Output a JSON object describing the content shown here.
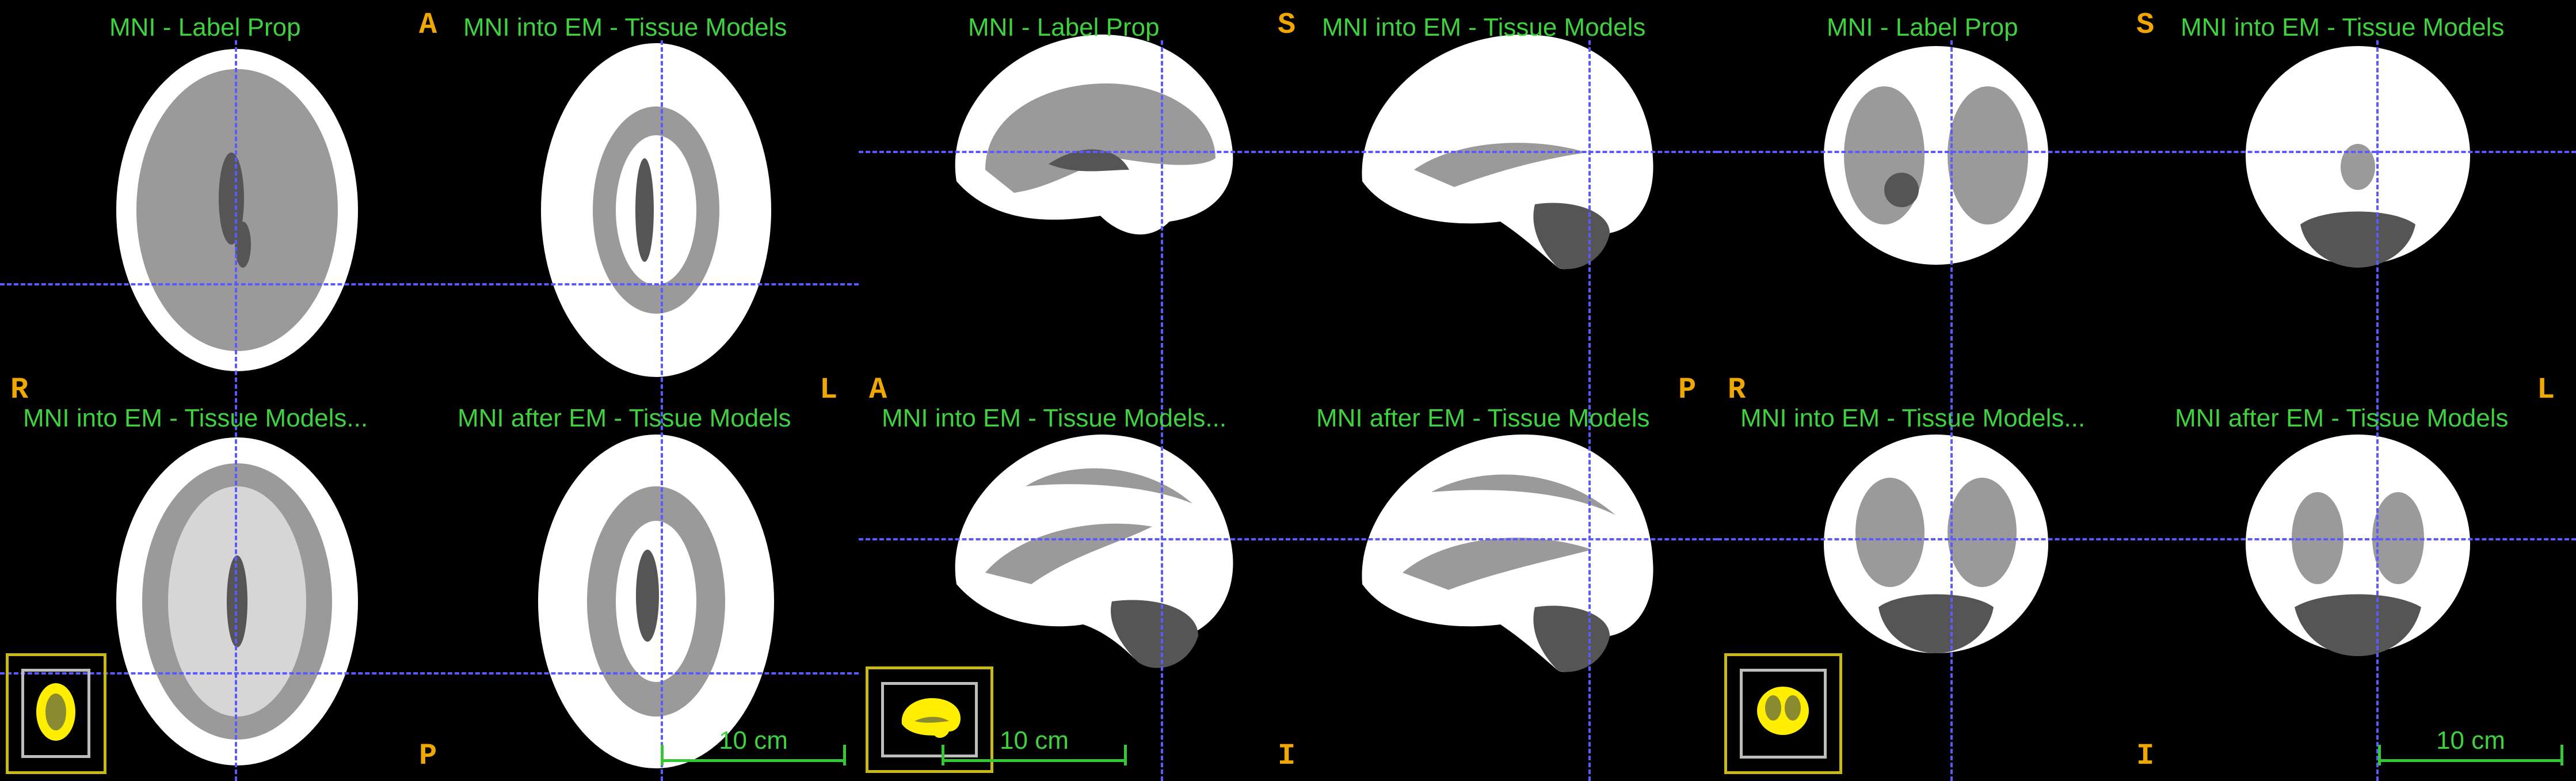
{
  "views": {
    "axial": {
      "titles": [
        "MNI - Label Prop",
        "MNI into EM - Tissue Models",
        "MNI into EM - Tissue Models...",
        "MNI after EM - Tissue Models"
      ],
      "orient": {
        "top": "A",
        "left": "R",
        "right": "L",
        "bottom": "P"
      },
      "scale": "10 cm"
    },
    "sagittal": {
      "titles": [
        "MNI - Label Prop",
        "MNI into EM - Tissue Models",
        "MNI into EM - Tissue Models...",
        "MNI after EM - Tissue Models"
      ],
      "orient": {
        "top": "S",
        "left": "A",
        "right": "P",
        "bottom": "I"
      },
      "scale": "10 cm"
    },
    "coronal": {
      "titles": [
        "MNI - Label Prop",
        "MNI into EM - Tissue Models",
        "MNI into EM - Tissue Models...",
        "MNI after EM - Tissue Models"
      ],
      "orient": {
        "top": "S",
        "left": "R",
        "right": "L",
        "bottom": "I"
      },
      "scale": "10 cm"
    }
  },
  "colors": {
    "title_text": "#3fd23f",
    "orientation_text": "#f0a800",
    "crosshair": "#5a5aff",
    "white_matter": "#ffffff",
    "gray_matter": "#9a9a9a",
    "csf": "#555555",
    "thumbnail_frame": "#c9b81a",
    "thumbnail_brain": "#ffee00"
  }
}
